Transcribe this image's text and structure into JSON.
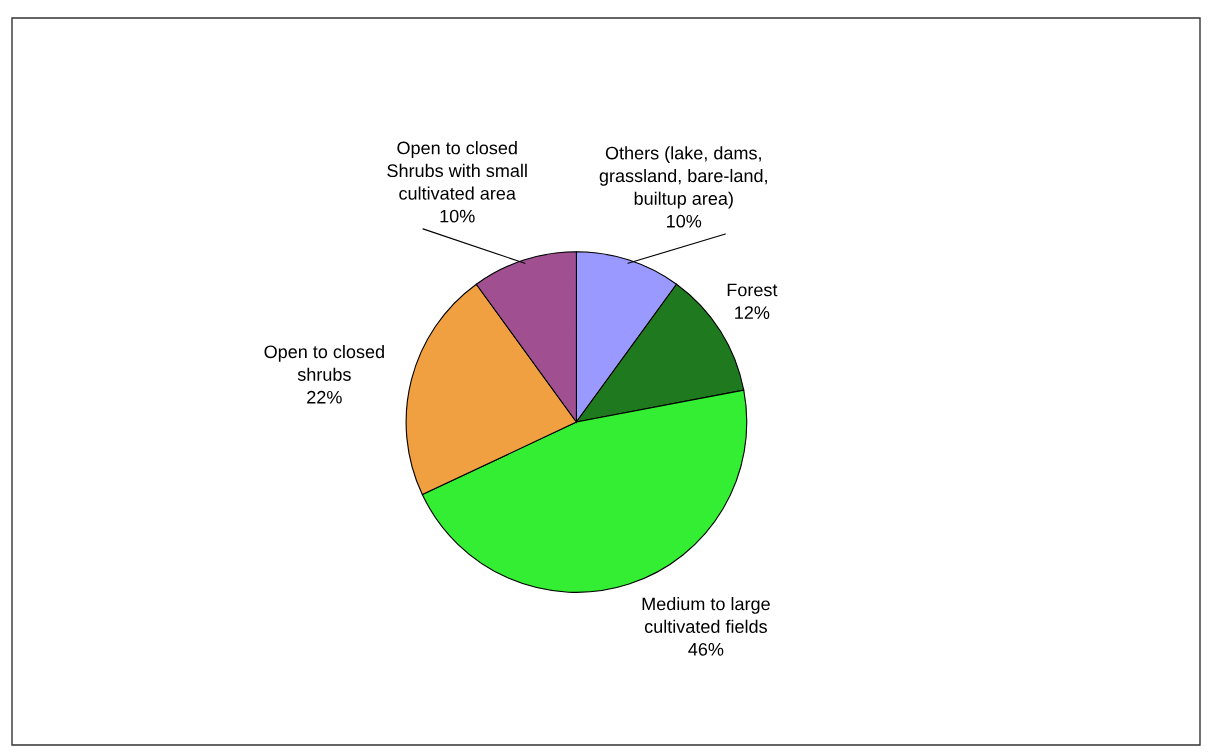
{
  "chart_data": {
    "type": "pie",
    "categories": [
      "Others (lake, dams,\ngrassland, bare-land,\nbuiltup area)",
      "Forest",
      "Medium to large\ncultivated fields",
      "Open to closed\nshrubs",
      "Open to closed\nShrubs with small\ncultivated area"
    ],
    "values": [
      10,
      12,
      46,
      22,
      10
    ],
    "colors": [
      "#9999ff",
      "#1f7a1f",
      "#33ee33",
      "#f0a040",
      "#a05090"
    ],
    "value_labels": [
      "10%",
      "12%",
      "46%",
      "22%",
      "10%"
    ]
  }
}
